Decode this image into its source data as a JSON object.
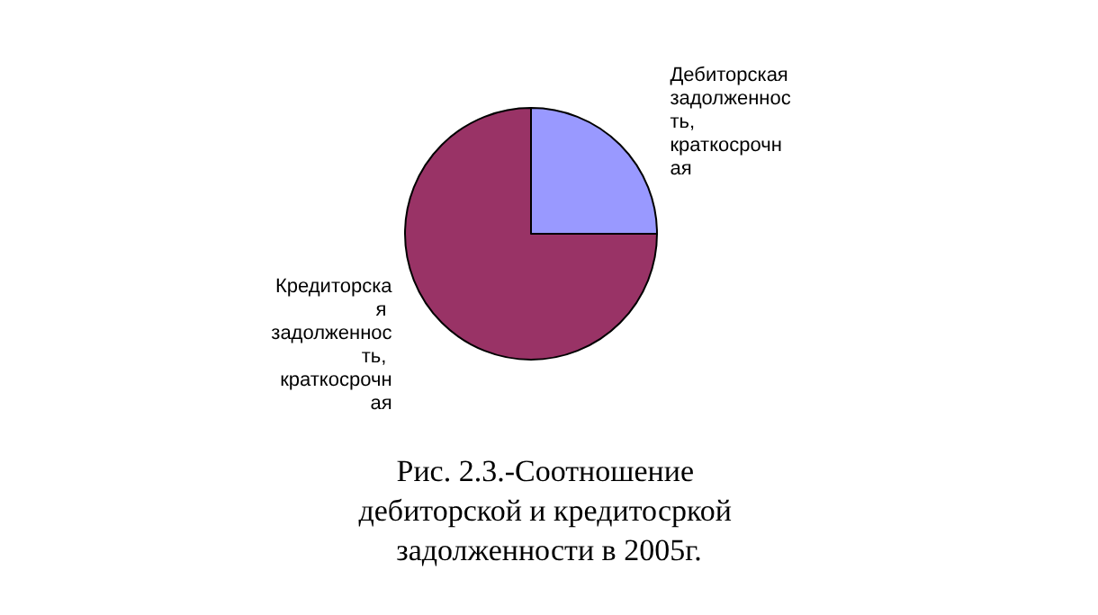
{
  "chart_data": {
    "type": "pie",
    "title": "Рис. 2.3.-Соотношение дебиторской и кредитосркой задолженности в 2005г.",
    "categories": [
      "Дебиторская задолженность, краткосрочная",
      "Кредиторская задолженность, краткосрочная"
    ],
    "values": [
      25,
      75
    ],
    "colors": [
      "#9999ff",
      "#993366"
    ],
    "legend": false
  }
}
